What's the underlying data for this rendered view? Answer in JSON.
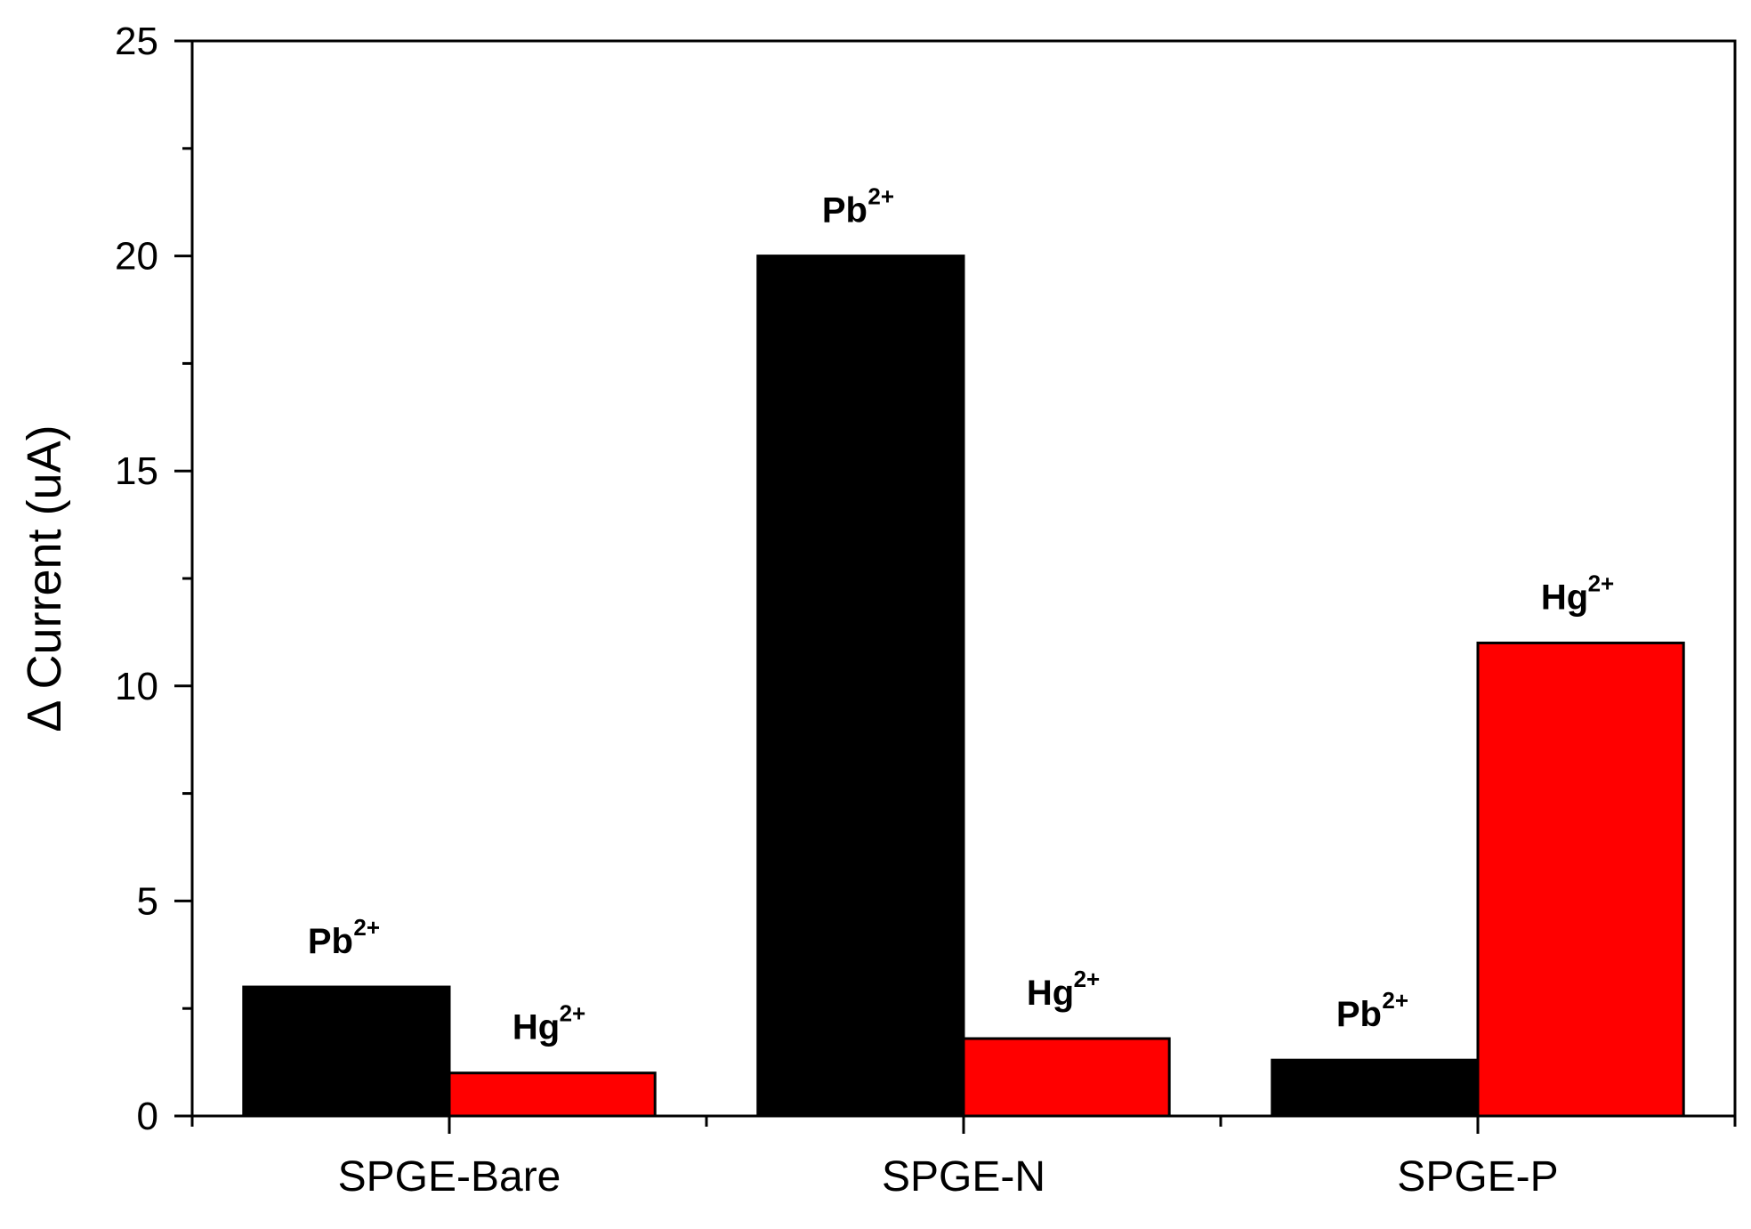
{
  "chart_data": {
    "type": "bar",
    "title": "",
    "xlabel": "",
    "ylabel": "Δ Current (uA)",
    "ylim": [
      0,
      25
    ],
    "yticks": [
      0,
      5,
      10,
      15,
      20,
      25
    ],
    "grid": false,
    "legend": "none",
    "categories": [
      "SPGE-Bare",
      "SPGE-N",
      "SPGE-P"
    ],
    "series": [
      {
        "color": "#000000",
        "values": [
          3.0,
          20.0,
          1.3
        ],
        "label_base": "Pb",
        "label_sup": "2+"
      },
      {
        "color": "#ff0000",
        "values": [
          1.0,
          1.8,
          11.0
        ],
        "label_base": "Hg",
        "label_sup": "2+"
      }
    ]
  }
}
